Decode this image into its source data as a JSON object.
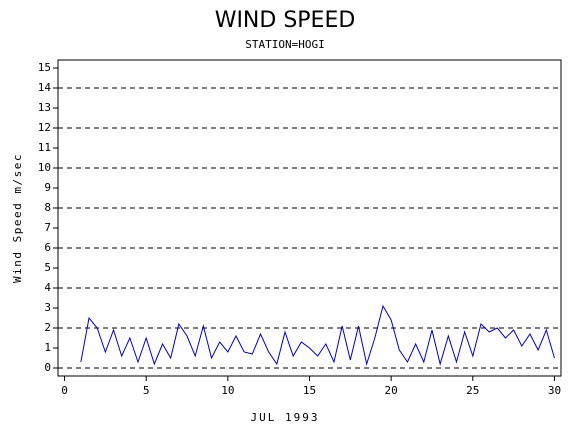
{
  "chart_data": {
    "type": "line",
    "title": "WIND SPEED",
    "subtitle": "STATION=HOGI",
    "y_label": "Wind Speed m/sec",
    "x_label": "JUL 1993",
    "xlim": [
      -0.4,
      30.4
    ],
    "xticks": [
      0,
      5,
      10,
      15,
      20,
      25,
      30
    ],
    "ylim": [
      -0.4,
      15.4
    ],
    "yticks": [
      0,
      1,
      2,
      3,
      4,
      5,
      6,
      7,
      8,
      9,
      10,
      11,
      12,
      13,
      14,
      15
    ],
    "reference_lines": [
      0,
      2,
      4,
      6,
      8,
      10,
      12,
      14
    ],
    "series": [
      {
        "color": "#0000cc",
        "x": [
          1.0,
          1.5,
          2.0,
          2.5,
          3.0,
          3.5,
          4.0,
          4.5,
          5.0,
          5.5,
          6.0,
          6.5,
          7.0,
          7.5,
          8.0,
          8.5,
          9.0,
          9.5,
          10.0,
          10.5,
          11.0,
          11.5,
          12.0,
          12.5,
          13.0,
          13.5,
          14.0,
          14.5,
          15.0,
          15.5,
          16.0,
          16.5,
          17.0,
          17.5,
          18.0,
          18.5,
          19.0,
          19.5,
          20.0,
          20.5,
          21.0,
          21.5,
          22.0,
          22.5,
          23.0,
          23.5,
          24.0,
          24.5,
          25.0,
          25.5,
          26.0,
          26.5,
          27.0,
          27.5,
          28.0,
          28.5,
          29.0,
          29.5,
          30.0
        ],
        "values": [
          0.3,
          2.5,
          2.0,
          0.8,
          1.9,
          0.6,
          1.5,
          0.3,
          1.5,
          0.2,
          1.2,
          0.5,
          2.2,
          1.6,
          0.6,
          2.1,
          0.5,
          1.3,
          0.8,
          1.6,
          0.8,
          0.7,
          1.7,
          0.8,
          0.2,
          1.8,
          0.6,
          1.3,
          1.0,
          0.6,
          1.2,
          0.3,
          2.1,
          0.4,
          2.1,
          0.2,
          1.5,
          3.1,
          2.4,
          0.9,
          0.3,
          1.2,
          0.3,
          1.9,
          0.2,
          1.6,
          0.3,
          1.8,
          0.6,
          2.2,
          1.8,
          2.0,
          1.5,
          1.9,
          1.1,
          1.7,
          0.9,
          1.9,
          0.5
        ]
      }
    ]
  }
}
